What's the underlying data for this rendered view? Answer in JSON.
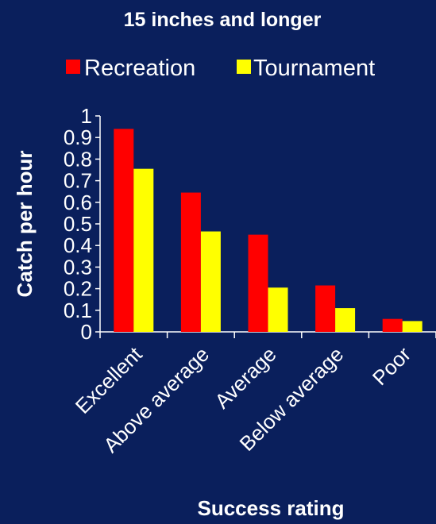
{
  "chart_data": {
    "type": "bar",
    "title": "15 inches and longer",
    "xlabel": "Success rating",
    "ylabel": "Catch per hour",
    "categories": [
      "Excellent",
      "Above average",
      "Average",
      "Below average",
      "Poor"
    ],
    "series": [
      {
        "name": "Recreation",
        "color": "#ff0000",
        "values": [
          0.94,
          0.645,
          0.45,
          0.215,
          0.06
        ]
      },
      {
        "name": "Tournament",
        "color": "#ffff00",
        "values": [
          0.755,
          0.465,
          0.205,
          0.11,
          0.05
        ]
      }
    ],
    "ylim": [
      0,
      1
    ],
    "yticks": [
      "0",
      "0.1",
      "0.2",
      "0.3",
      "0.4",
      "0.5",
      "0.6",
      "0.7",
      "0.8",
      "0.9",
      "1"
    ],
    "grid": false,
    "legend_position": "top"
  }
}
